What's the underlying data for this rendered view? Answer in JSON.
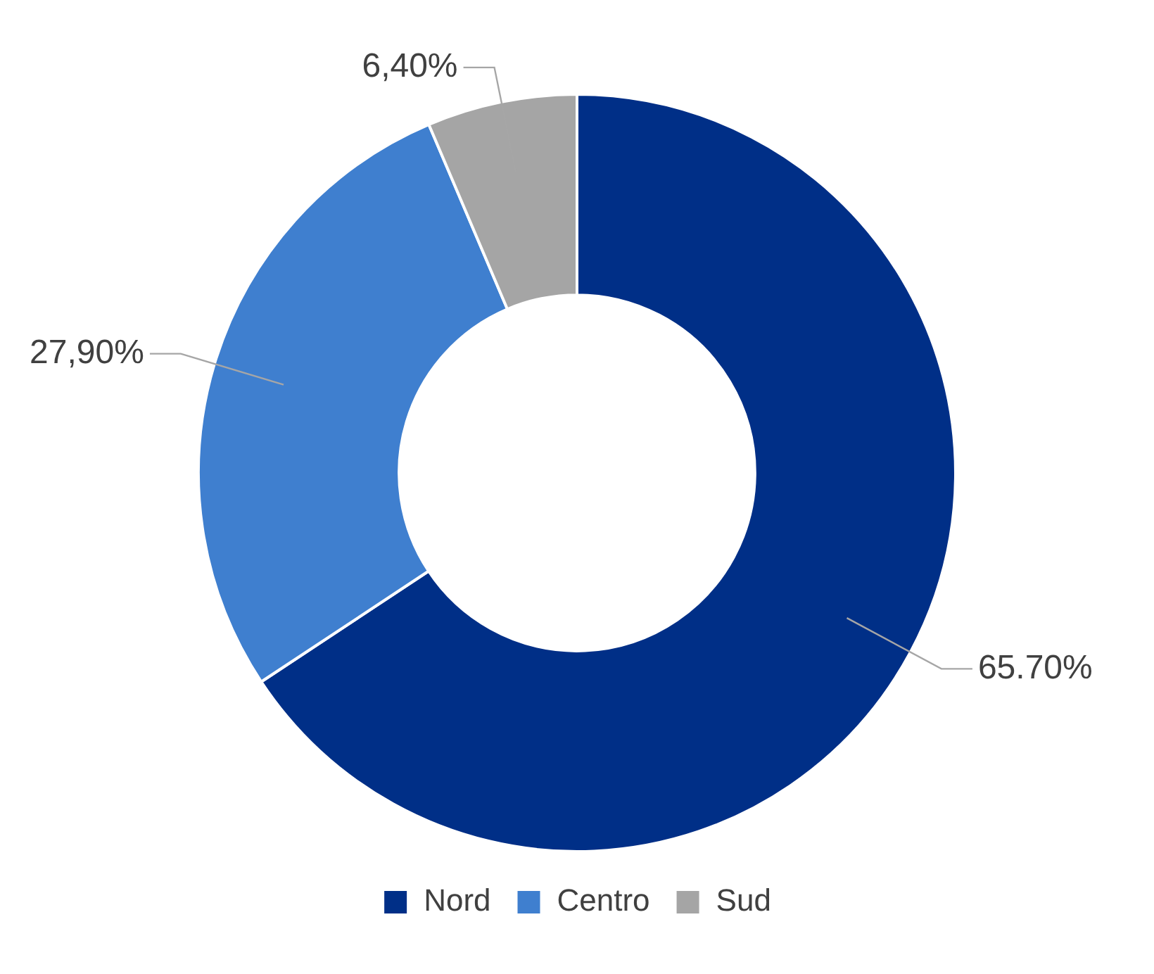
{
  "chart_data": {
    "type": "donut",
    "categories": [
      "Nord",
      "Centro",
      "Sud"
    ],
    "values": [
      65.7,
      27.9,
      6.4
    ],
    "colors": [
      "#002f87",
      "#3f7fcf",
      "#a5a5a5"
    ],
    "value_labels": [
      "65.70%",
      "27,90%",
      "6,40%"
    ],
    "legend": "bottom"
  }
}
